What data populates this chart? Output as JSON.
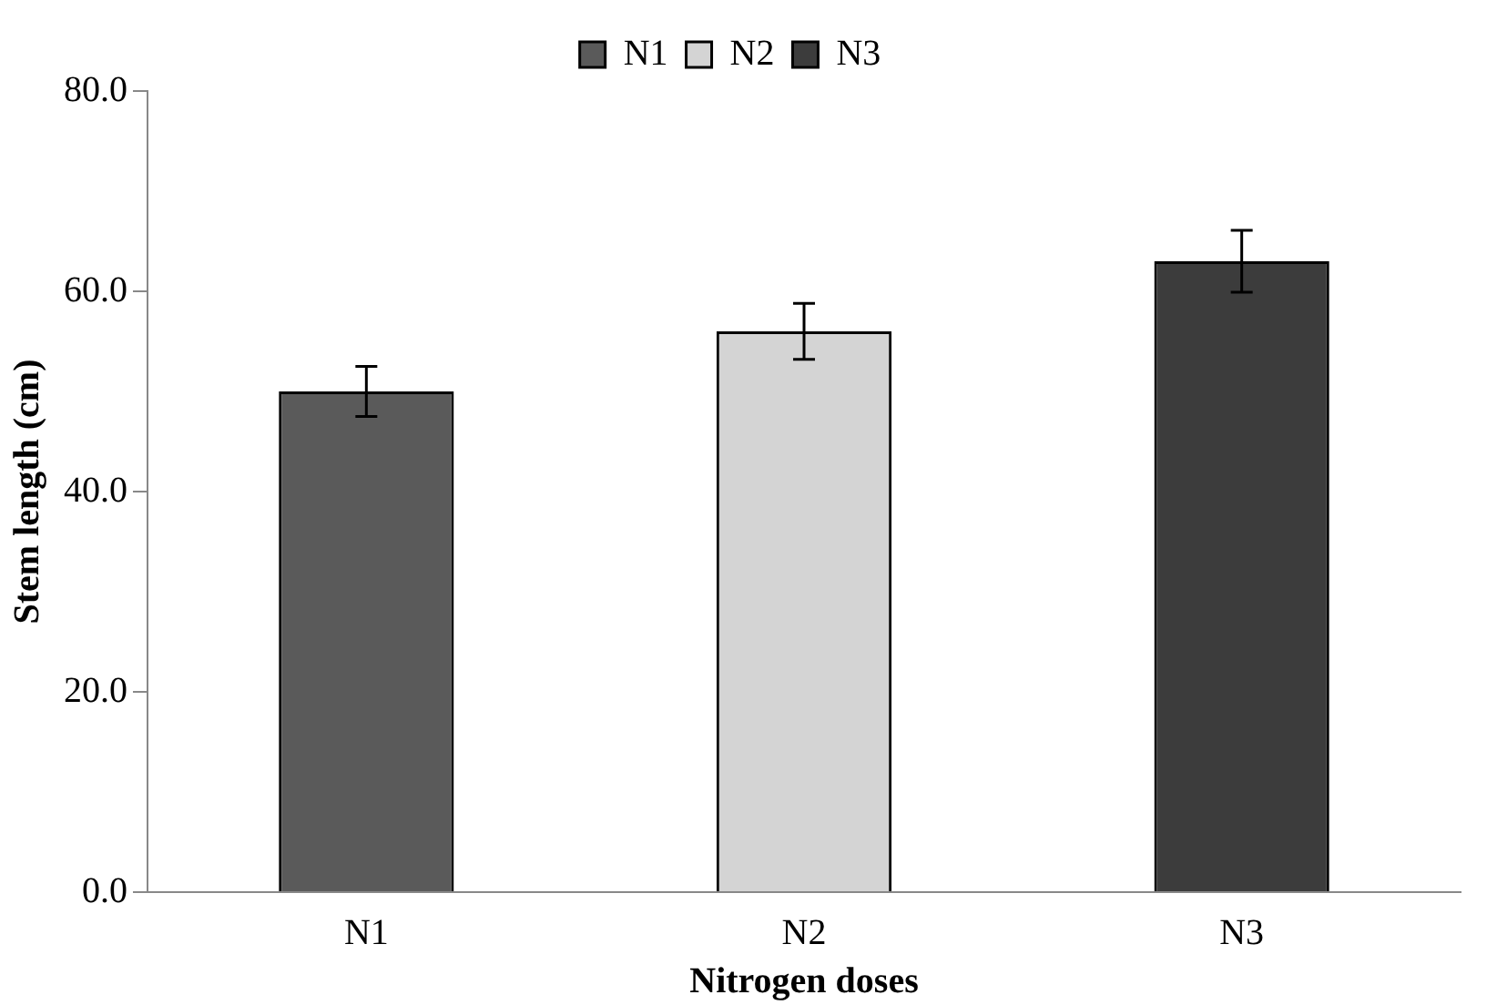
{
  "chart_data": {
    "type": "bar",
    "xlabel": "Nitrogen doses",
    "ylabel": "Stem length (cm)",
    "categories": [
      "N1",
      "N2",
      "N3"
    ],
    "series": [
      {
        "name": "N1",
        "color": "#5a5a5a",
        "values": [
          50,
          null,
          null
        ],
        "errors": [
          2.5,
          null,
          null
        ]
      },
      {
        "name": "N2",
        "color": "#d4d4d4",
        "values": [
          null,
          56,
          null
        ],
        "errors": [
          null,
          2.8,
          null
        ]
      },
      {
        "name": "N3",
        "color": "#3c3c3c",
        "values": [
          null,
          null,
          63
        ],
        "errors": [
          null,
          null,
          3.1
        ]
      }
    ],
    "ylim": [
      0,
      80
    ],
    "yticks": [
      {
        "value": 0,
        "label": "0.0"
      },
      {
        "value": 20,
        "label": "20.0"
      },
      {
        "value": 40,
        "label": "40.0"
      },
      {
        "value": 60,
        "label": "60.0"
      },
      {
        "value": 80,
        "label": "80.0"
      }
    ],
    "grid": false,
    "legend": "top"
  }
}
